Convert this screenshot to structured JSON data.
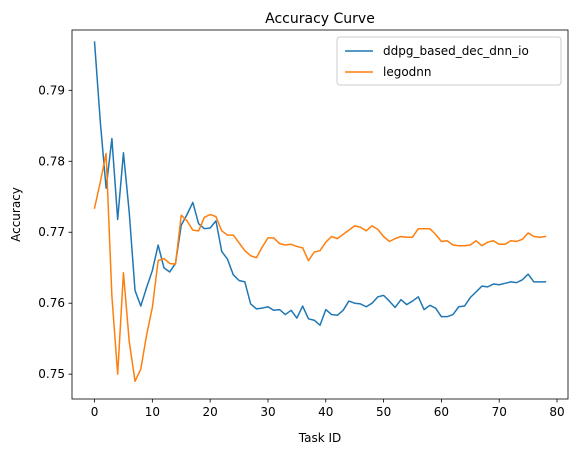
{
  "chart_data": {
    "type": "line",
    "title": "Accuracy Curve",
    "xlabel": "Task ID",
    "ylabel": "Accuracy",
    "xlim": [
      -3.9,
      81.9
    ],
    "ylim": [
      0.7465,
      0.7985
    ],
    "xticks": [
      0,
      10,
      20,
      30,
      40,
      50,
      60,
      70,
      80
    ],
    "yticks": [
      0.75,
      0.76,
      0.77,
      0.78,
      0.79
    ],
    "ytick_labels": [
      "0.75",
      "0.76",
      "0.77",
      "0.78",
      "0.79"
    ],
    "grid": false,
    "legend_position": "top-right",
    "x": [
      0,
      1,
      2,
      3,
      4,
      5,
      6,
      7,
      8,
      9,
      10,
      11,
      12,
      13,
      14,
      15,
      16,
      17,
      18,
      19,
      20,
      21,
      22,
      23,
      24,
      25,
      26,
      27,
      28,
      29,
      30,
      31,
      32,
      33,
      34,
      35,
      36,
      37,
      38,
      39,
      40,
      41,
      42,
      43,
      44,
      45,
      46,
      47,
      48,
      49,
      50,
      51,
      52,
      53,
      54,
      55,
      56,
      57,
      58,
      59,
      60,
      61,
      62,
      63,
      64,
      65,
      66,
      67,
      68,
      69,
      70,
      71,
      72,
      73,
      74,
      75,
      76,
      77,
      78
    ],
    "series": [
      {
        "name": "ddpg_based_dec_dnn_io",
        "color": "#1f77b4",
        "values": [
          0.7968,
          0.7855,
          0.7762,
          0.7832,
          0.7718,
          0.7812,
          0.7728,
          0.7618,
          0.7596,
          0.7622,
          0.7646,
          0.7682,
          0.765,
          0.7644,
          0.7656,
          0.771,
          0.7725,
          0.7742,
          0.7712,
          0.7705,
          0.7706,
          0.7716,
          0.7673,
          0.7662,
          0.764,
          0.7632,
          0.763,
          0.7599,
          0.7592,
          0.7593,
          0.7595,
          0.759,
          0.7591,
          0.7584,
          0.759,
          0.7579,
          0.7596,
          0.7578,
          0.7576,
          0.7569,
          0.7591,
          0.7584,
          0.7583,
          0.759,
          0.7603,
          0.76,
          0.7599,
          0.7595,
          0.76,
          0.7609,
          0.7611,
          0.7603,
          0.7594,
          0.7605,
          0.7598,
          0.7603,
          0.7609,
          0.7591,
          0.7597,
          0.7593,
          0.7581,
          0.7581,
          0.7584,
          0.7595,
          0.7596,
          0.7608,
          0.7616,
          0.7624,
          0.7623,
          0.7627,
          0.7626,
          0.7628,
          0.763,
          0.7629,
          0.7633,
          0.7641,
          0.763,
          0.763,
          0.763
        ]
      },
      {
        "name": "legodnn",
        "color": "#ff7f0e",
        "values": [
          0.7734,
          0.7771,
          0.7811,
          0.761,
          0.75,
          0.7643,
          0.7546,
          0.749,
          0.7507,
          0.7555,
          0.7594,
          0.766,
          0.7663,
          0.7656,
          0.7655,
          0.7724,
          0.7716,
          0.7703,
          0.7702,
          0.7721,
          0.7725,
          0.7722,
          0.7702,
          0.7696,
          0.7696,
          0.7685,
          0.7674,
          0.7667,
          0.7664,
          0.7679,
          0.7692,
          0.7692,
          0.7684,
          0.7682,
          0.7683,
          0.768,
          0.7678,
          0.766,
          0.7672,
          0.7674,
          0.7686,
          0.7694,
          0.7691,
          0.7697,
          0.7703,
          0.7709,
          0.7707,
          0.7702,
          0.7709,
          0.7704,
          0.7694,
          0.7687,
          0.7691,
          0.7694,
          0.7693,
          0.7693,
          0.7705,
          0.7705,
          0.7705,
          0.7697,
          0.7687,
          0.7688,
          0.7682,
          0.7681,
          0.7681,
          0.7682,
          0.7688,
          0.7681,
          0.7686,
          0.7688,
          0.7683,
          0.7683,
          0.7688,
          0.7687,
          0.769,
          0.7699,
          0.7694,
          0.7693,
          0.7694
        ]
      }
    ]
  }
}
